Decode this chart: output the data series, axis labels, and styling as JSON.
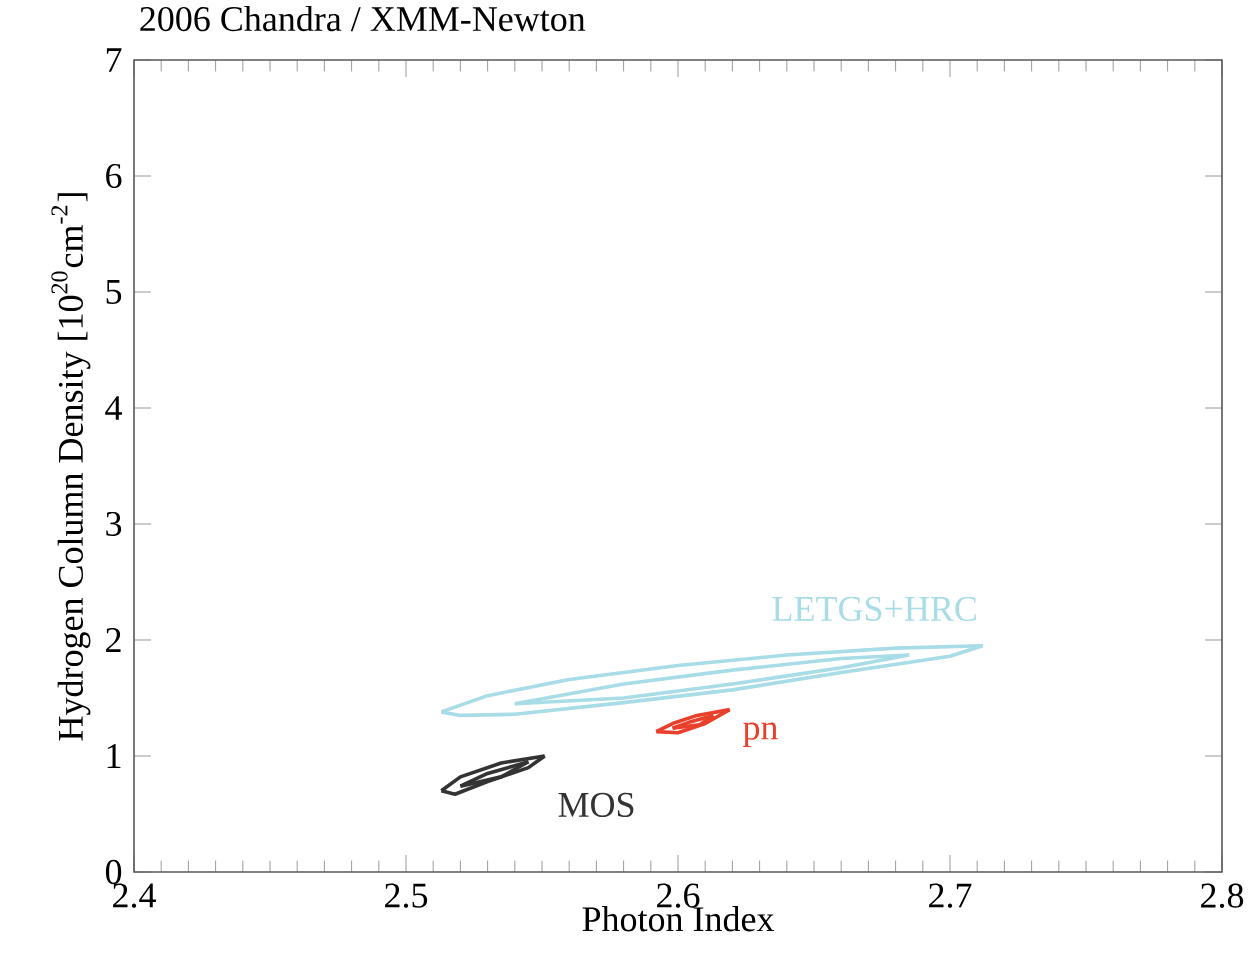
{
  "chart_data": {
    "type": "line",
    "title": "2006 Chandra / XMM-Newton",
    "xlabel": "Photon Index",
    "ylabel": "Hydrogen Column Density [10$^{20}$cm$^{-2}$]",
    "xlim": [
      2.4,
      2.8
    ],
    "ylim": [
      0,
      7
    ],
    "xticks": [
      2.4,
      2.5,
      2.6,
      2.7,
      2.8
    ],
    "yticks": [
      0,
      1,
      2,
      3,
      4,
      5,
      6,
      7
    ],
    "marker": "none",
    "line_style": "solid",
    "series": [
      {
        "color": "#a8dce6",
        "x": [
          2.513,
          2.53,
          2.56,
          2.6,
          2.64,
          2.68,
          2.712
        ],
        "values": [
          1.38,
          1.52,
          1.66,
          1.78,
          1.87,
          1.93,
          1.95
        ]
      },
      {
        "color": "#a8dce6",
        "x": [
          2.513,
          2.52,
          2.54,
          2.58,
          2.62,
          2.66,
          2.7,
          2.712
        ],
        "values": [
          1.38,
          1.35,
          1.36,
          1.46,
          1.57,
          1.72,
          1.86,
          1.95
        ]
      },
      {
        "color": "#a8dce6",
        "x": [
          2.54,
          2.58,
          2.62,
          2.66,
          2.685
        ],
        "values": [
          1.45,
          1.62,
          1.74,
          1.84,
          1.87
        ]
      },
      {
        "color": "#a8dce6",
        "x": [
          2.54,
          2.58,
          2.62,
          2.66,
          2.685
        ],
        "values": [
          1.45,
          1.5,
          1.62,
          1.76,
          1.87
        ]
      },
      {
        "color": "#e8402a",
        "x": [
          2.592,
          2.598,
          2.607,
          2.619
        ],
        "values": [
          1.21,
          1.28,
          1.35,
          1.4
        ]
      },
      {
        "color": "#e8402a",
        "x": [
          2.592,
          2.6,
          2.61,
          2.619
        ],
        "values": [
          1.21,
          1.2,
          1.28,
          1.4
        ]
      },
      {
        "color": "#e8402a",
        "x": [
          2.598,
          2.604,
          2.613
        ],
        "values": [
          1.24,
          1.29,
          1.35
        ]
      },
      {
        "color": "#e8402a",
        "x": [
          2.598,
          2.608,
          2.613
        ],
        "values": [
          1.24,
          1.27,
          1.35
        ]
      },
      {
        "color": "#333333",
        "x": [
          2.513,
          2.52,
          2.535,
          2.551
        ],
        "values": [
          0.7,
          0.82,
          0.94,
          1.0
        ]
      },
      {
        "color": "#333333",
        "x": [
          2.513,
          2.518,
          2.53,
          2.545,
          2.551
        ],
        "values": [
          0.7,
          0.67,
          0.78,
          0.9,
          1.0
        ]
      },
      {
        "color": "#333333",
        "x": [
          2.52,
          2.53,
          2.545
        ],
        "values": [
          0.74,
          0.85,
          0.95
        ]
      },
      {
        "color": "#333333",
        "x": [
          2.52,
          2.535,
          2.545
        ],
        "values": [
          0.74,
          0.82,
          0.95
        ]
      }
    ],
    "annotations": [
      "LETGS+HRC",
      "pn",
      "MOS"
    ]
  }
}
